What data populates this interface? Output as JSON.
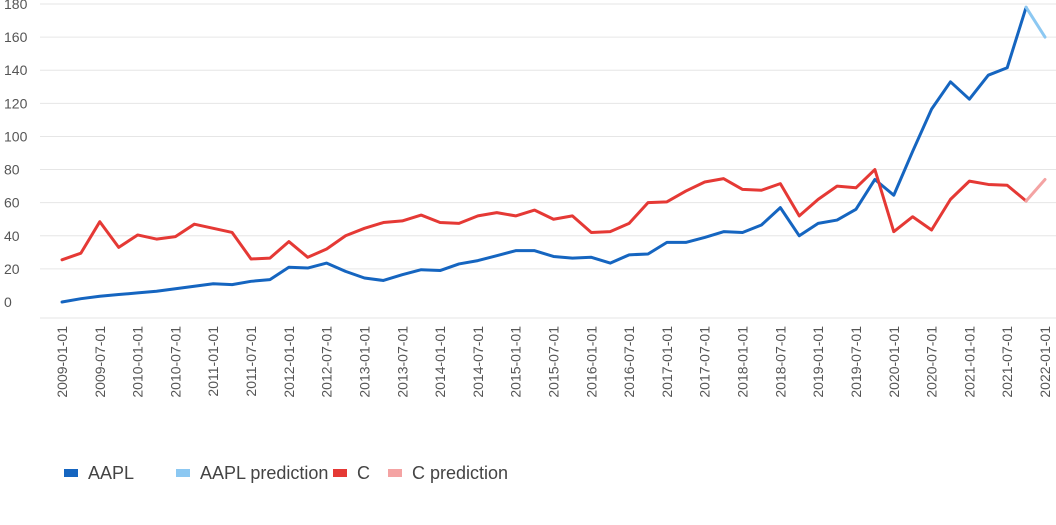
{
  "chart_data": {
    "type": "line",
    "title": "",
    "xlabel": "",
    "ylabel": "",
    "ylim": [
      0,
      180
    ],
    "yticks": [
      0,
      20,
      40,
      60,
      80,
      100,
      120,
      140,
      160,
      180
    ],
    "grid": true,
    "legend_position": "bottom-left",
    "x": [
      "2009-01-01",
      "2009-04-01",
      "2009-07-01",
      "2009-10-01",
      "2010-01-01",
      "2010-04-01",
      "2010-07-01",
      "2010-10-01",
      "2011-01-01",
      "2011-04-01",
      "2011-07-01",
      "2011-10-01",
      "2012-01-01",
      "2012-04-01",
      "2012-07-01",
      "2012-10-01",
      "2013-01-01",
      "2013-04-01",
      "2013-07-01",
      "2013-10-01",
      "2014-01-01",
      "2014-04-01",
      "2014-07-01",
      "2014-10-01",
      "2015-01-01",
      "2015-04-01",
      "2015-07-01",
      "2015-10-01",
      "2016-01-01",
      "2016-04-01",
      "2016-07-01",
      "2016-10-01",
      "2017-01-01",
      "2017-04-01",
      "2017-07-01",
      "2017-10-01",
      "2018-01-01",
      "2018-04-01",
      "2018-07-01",
      "2018-10-01",
      "2019-01-01",
      "2019-04-01",
      "2019-07-01",
      "2019-10-01",
      "2020-01-01",
      "2020-04-01",
      "2020-07-01",
      "2020-10-01",
      "2021-01-01",
      "2021-04-01",
      "2021-07-01",
      "2021-10-01",
      "2022-01-01"
    ],
    "xtick_labels": [
      "2009-01-01",
      "2009-07-01",
      "2010-01-01",
      "2010-07-01",
      "2011-01-01",
      "2011-07-01",
      "2012-01-01",
      "2012-07-01",
      "2013-01-01",
      "2013-07-01",
      "2014-01-01",
      "2014-07-01",
      "2015-01-01",
      "2015-07-01",
      "2016-01-01",
      "2016-07-01",
      "2017-01-01",
      "2017-07-01",
      "2018-01-01",
      "2018-07-01",
      "2019-01-01",
      "2019-07-01",
      "2020-01-01",
      "2020-07-01",
      "2021-01-01",
      "2021-07-01",
      "2022-01-01"
    ],
    "series": [
      {
        "name": "AAPL",
        "color": "#1565c0",
        "values": [
          0,
          2,
          3.5,
          4.5,
          5.5,
          6.5,
          8,
          9.5,
          11,
          10.5,
          12.5,
          13.5,
          21,
          20.5,
          23.5,
          18.5,
          14.5,
          13,
          16.5,
          19.5,
          19,
          23,
          25,
          28,
          31,
          31,
          27.5,
          26.5,
          27,
          23.5,
          28.5,
          29,
          36,
          36,
          39,
          42.5,
          42,
          46.5,
          57,
          40,
          47.5,
          49.5,
          56,
          74,
          64.5,
          91,
          116.5,
          133,
          122.5,
          137,
          141.5,
          178,
          null
        ]
      },
      {
        "name": "AAPL prediction",
        "color": "#8cc8f2",
        "values": [
          null,
          null,
          null,
          null,
          null,
          null,
          null,
          null,
          null,
          null,
          null,
          null,
          null,
          null,
          null,
          null,
          null,
          null,
          null,
          null,
          null,
          null,
          null,
          null,
          null,
          null,
          null,
          null,
          null,
          null,
          null,
          null,
          null,
          null,
          null,
          null,
          null,
          null,
          null,
          null,
          null,
          null,
          null,
          null,
          null,
          null,
          null,
          null,
          null,
          null,
          null,
          178,
          160
        ]
      },
      {
        "name": "C",
        "color": "#e53935",
        "values": [
          25.5,
          29.5,
          48.5,
          33,
          40.5,
          38,
          39.5,
          47,
          44.5,
          42,
          26,
          26.5,
          36.5,
          27,
          32,
          40,
          44.5,
          48,
          49,
          52.5,
          48,
          47.5,
          52,
          54,
          52,
          55.5,
          50,
          52,
          42,
          42.5,
          47.5,
          60,
          60.5,
          67,
          72.5,
          74.5,
          68,
          67.5,
          71.5,
          52,
          62,
          70,
          69,
          80,
          42.5,
          51.5,
          43.5,
          62,
          73,
          71,
          70.5,
          61,
          null
        ]
      },
      {
        "name": "C prediction",
        "color": "#f4a3a3",
        "values": [
          null,
          null,
          null,
          null,
          null,
          null,
          null,
          null,
          null,
          null,
          null,
          null,
          null,
          null,
          null,
          null,
          null,
          null,
          null,
          null,
          null,
          null,
          null,
          null,
          null,
          null,
          null,
          null,
          null,
          null,
          null,
          null,
          null,
          null,
          null,
          null,
          null,
          null,
          null,
          null,
          null,
          null,
          null,
          null,
          null,
          null,
          null,
          null,
          null,
          null,
          null,
          61,
          74
        ]
      }
    ]
  }
}
